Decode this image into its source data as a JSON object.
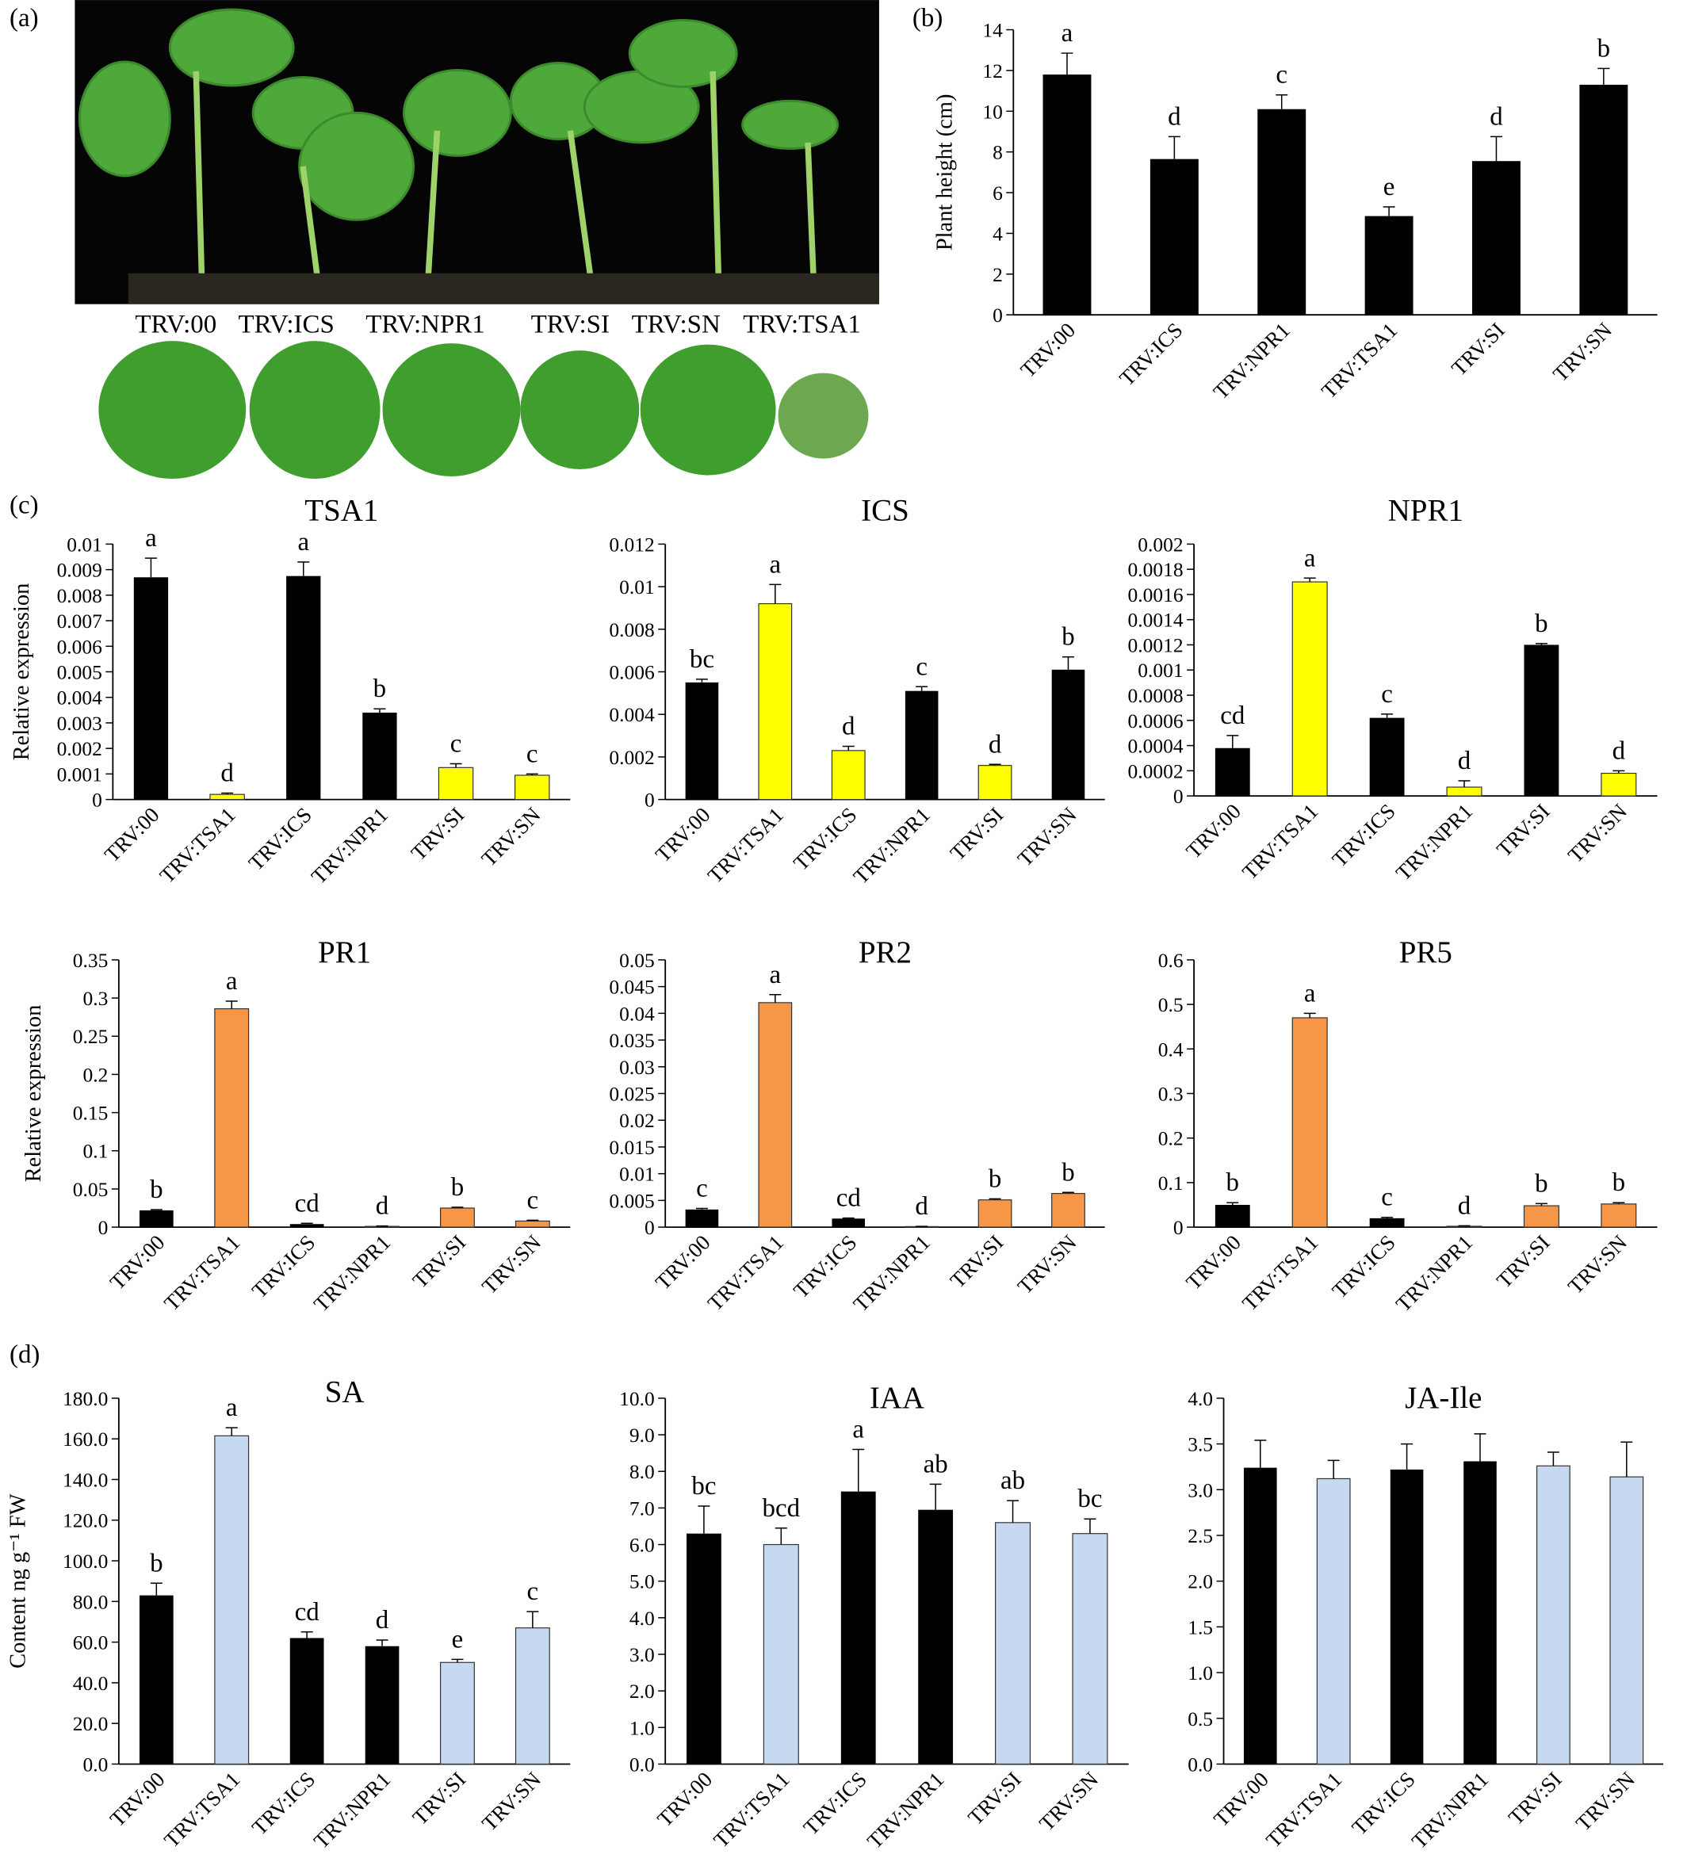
{
  "panel_labels": [
    "(a)",
    "(b)",
    "(c)",
    "(d)"
  ],
  "photo": {
    "labels": [
      "TRV:00",
      "TRV:ICS",
      "TRV:NPR1",
      "TRV:SI",
      "TRV:SN",
      "TRV:TSA1"
    ]
  },
  "chart_data": [
    {
      "type": "bar",
      "ylabel": "Plant height (cm)",
      "categories": [
        "TRV:00",
        "TRV:ICS",
        "TRV:NPR1",
        "TRV:TSA1",
        "TRV:SI",
        "TRV:SN"
      ],
      "values": [
        11.8,
        7.65,
        10.1,
        4.85,
        7.55,
        11.3
      ],
      "errors": [
        1.05,
        1.1,
        0.7,
        0.45,
        1.2,
        0.8
      ],
      "letters": [
        "a",
        "d",
        "c",
        "e",
        "d",
        "b"
      ],
      "colors": [
        "#000000",
        "#000000",
        "#000000",
        "#000000",
        "#000000",
        "#000000"
      ],
      "ylim": [
        0,
        14
      ],
      "yticks": [
        0,
        2,
        4,
        6,
        8,
        10,
        12,
        14
      ]
    },
    {
      "type": "bar",
      "title": "TSA1",
      "ylabel": "Relative expression",
      "categories": [
        "TRV:00",
        "TRV:TSA1",
        "TRV:ICS",
        "TRV:NPR1",
        "TRV:SI",
        "TRV:SN"
      ],
      "values": [
        0.0087,
        0.0002,
        0.00875,
        0.0034,
        0.00125,
        0.00095
      ],
      "errors": [
        0.00075,
        5e-05,
        0.00055,
        0.00015,
        0.00015,
        5e-05
      ],
      "letters": [
        "a",
        "d",
        "a",
        "b",
        "c",
        "c"
      ],
      "colors": [
        "#000000",
        "#ffff00",
        "#000000",
        "#000000",
        "#ffff00",
        "#ffff00"
      ],
      "ylim": [
        0,
        0.01
      ],
      "yticks": [
        0,
        0.001,
        0.002,
        0.003,
        0.004,
        0.005,
        0.006,
        0.007,
        0.008,
        0.009,
        0.01
      ]
    },
    {
      "type": "bar",
      "title": "ICS",
      "categories": [
        "TRV:00",
        "TRV:TSA1",
        "TRV:ICS",
        "TRV:NPR1",
        "TRV:SI",
        "TRV:SN"
      ],
      "values": [
        0.0055,
        0.0092,
        0.0023,
        0.0051,
        0.0016,
        0.0061
      ],
      "errors": [
        0.00015,
        0.0009,
        0.0002,
        0.0002,
        5e-05,
        0.0006
      ],
      "letters": [
        "bc",
        "a",
        "d",
        "c",
        "d",
        "b"
      ],
      "colors": [
        "#000000",
        "#ffff00",
        "#ffff00",
        "#000000",
        "#ffff00",
        "#000000"
      ],
      "ylim": [
        0,
        0.012
      ],
      "yticks": [
        0,
        0.002,
        0.004,
        0.006,
        0.008,
        0.01,
        0.012
      ]
    },
    {
      "type": "bar",
      "title": "NPR1",
      "categories": [
        "TRV:00",
        "TRV:TSA1",
        "TRV:ICS",
        "TRV:NPR1",
        "TRV:SI",
        "TRV:SN"
      ],
      "values": [
        0.00038,
        0.0017,
        0.00062,
        7e-05,
        0.0012,
        0.00018
      ],
      "errors": [
        0.0001,
        3e-05,
        3e-05,
        5e-05,
        1e-05,
        2e-05
      ],
      "letters": [
        "cd",
        "a",
        "c",
        "d",
        "b",
        "d"
      ],
      "colors": [
        "#000000",
        "#ffff00",
        "#000000",
        "#ffff00",
        "#000000",
        "#ffff00"
      ],
      "ylim": [
        0,
        0.002
      ],
      "yticks": [
        0,
        0.0002,
        0.0004,
        0.0006,
        0.0008,
        0.001,
        0.0012,
        0.0014,
        0.0016,
        0.0018,
        0.002
      ]
    },
    {
      "type": "bar",
      "title": "PR1",
      "ylabel": "Relative expression",
      "categories": [
        "TRV:00",
        "TRV:TSA1",
        "TRV:ICS",
        "TRV:NPR1",
        "TRV:SI",
        "TRV:SN"
      ],
      "values": [
        0.022,
        0.286,
        0.004,
        0.001,
        0.025,
        0.008
      ],
      "errors": [
        0.001,
        0.01,
        0.001,
        0.0005,
        0.001,
        0.001
      ],
      "letters": [
        "b",
        "a",
        "cd",
        "d",
        "b",
        "c"
      ],
      "colors": [
        "#000000",
        "#f79646",
        "#000000",
        "#f79646",
        "#f79646",
        "#f79646"
      ],
      "ylim": [
        0,
        0.35
      ],
      "yticks": [
        0,
        0.05,
        0.1,
        0.15,
        0.2,
        0.25,
        0.3,
        0.35
      ]
    },
    {
      "type": "bar",
      "title": "PR2",
      "categories": [
        "TRV:00",
        "TRV:TSA1",
        "TRV:ICS",
        "TRV:NPR1",
        "TRV:SI",
        "TRV:SN"
      ],
      "values": [
        0.0033,
        0.042,
        0.0016,
        0.0001,
        0.0051,
        0.0063
      ],
      "errors": [
        0.0002,
        0.0015,
        0.0001,
        5e-05,
        0.0002,
        0.0002
      ],
      "letters": [
        "c",
        "a",
        "cd",
        "d",
        "b",
        "b"
      ],
      "colors": [
        "#000000",
        "#f79646",
        "#000000",
        "#f79646",
        "#f79646",
        "#f79646"
      ],
      "ylim": [
        0,
        0.05
      ],
      "yticks": [
        0,
        0.005,
        0.01,
        0.015,
        0.02,
        0.025,
        0.03,
        0.035,
        0.04,
        0.045,
        0.05
      ]
    },
    {
      "type": "bar",
      "title": "PR5",
      "categories": [
        "TRV:00",
        "TRV:TSA1",
        "TRV:ICS",
        "TRV:NPR1",
        "TRV:SI",
        "TRV:SN"
      ],
      "values": [
        0.05,
        0.47,
        0.02,
        0.002,
        0.048,
        0.052
      ],
      "errors": [
        0.005,
        0.01,
        0.002,
        0.001,
        0.005,
        0.003
      ],
      "letters": [
        "b",
        "a",
        "c",
        "d",
        "b",
        "b"
      ],
      "colors": [
        "#000000",
        "#f79646",
        "#000000",
        "#f79646",
        "#f79646",
        "#f79646"
      ],
      "ylim": [
        0,
        0.6
      ],
      "yticks": [
        0,
        0.1,
        0.2,
        0.3,
        0.4,
        0.5,
        0.6
      ]
    },
    {
      "type": "bar",
      "title": "SA",
      "ylabel": "Content ng g⁻¹ FW",
      "categories": [
        "TRV:00",
        "TRV:TSA1",
        "TRV:ICS",
        "TRV:NPR1",
        "TRV:SI",
        "TRV:SN"
      ],
      "values": [
        83,
        161.5,
        62,
        58,
        50,
        67
      ],
      "errors": [
        6,
        4,
        3,
        3,
        1.5,
        8
      ],
      "letters": [
        "b",
        "a",
        "cd",
        "d",
        "e",
        "c"
      ],
      "colors": [
        "#000000",
        "#c6d9f1",
        "#000000",
        "#000000",
        "#c6d9f1",
        "#c6d9f1"
      ],
      "ylim": [
        0,
        180
      ],
      "yticks": [
        {
          "value": 0,
          "label": "0.0"
        },
        {
          "value": 20,
          "label": "20.0"
        },
        {
          "value": 40,
          "label": "40.0"
        },
        {
          "value": 60,
          "label": "60.0"
        },
        {
          "value": 80,
          "label": "80.0"
        },
        {
          "value": 100,
          "label": "100.0"
        },
        {
          "value": 120,
          "label": "120.0"
        },
        {
          "value": 140,
          "label": "140.0"
        },
        {
          "value": 160,
          "label": "160.0"
        },
        {
          "value": 180,
          "label": "180.0"
        }
      ]
    },
    {
      "type": "bar",
      "title": "IAA",
      "categories": [
        "TRV:00",
        "TRV:TSA1",
        "TRV:ICS",
        "TRV:NPR1",
        "TRV:SI",
        "TRV:SN"
      ],
      "values": [
        6.3,
        6.0,
        7.45,
        6.95,
        6.6,
        6.3
      ],
      "errors": [
        0.75,
        0.45,
        1.15,
        0.7,
        0.6,
        0.4
      ],
      "letters": [
        "bc",
        "bcd",
        "a",
        "ab",
        "ab",
        "bc"
      ],
      "colors": [
        "#000000",
        "#c6d9f1",
        "#000000",
        "#000000",
        "#c6d9f1",
        "#c6d9f1"
      ],
      "ylim": [
        0,
        10
      ],
      "yticks": [
        {
          "value": 0,
          "label": "0.0"
        },
        {
          "value": 1,
          "label": "1.0"
        },
        {
          "value": 2,
          "label": "2.0"
        },
        {
          "value": 3,
          "label": "3.0"
        },
        {
          "value": 4,
          "label": "4.0"
        },
        {
          "value": 5,
          "label": "5.0"
        },
        {
          "value": 6,
          "label": "6.0"
        },
        {
          "value": 7,
          "label": "7.0"
        },
        {
          "value": 8,
          "label": "8.0"
        },
        {
          "value": 9,
          "label": "9.0"
        },
        {
          "value": 10,
          "label": "10.0"
        }
      ]
    },
    {
      "type": "bar",
      "title": "JA-Ile",
      "categories": [
        "TRV:00",
        "TRV:TSA1",
        "TRV:ICS",
        "TRV:NPR1",
        "TRV:SI",
        "TRV:SN"
      ],
      "values": [
        3.24,
        3.12,
        3.22,
        3.31,
        3.26,
        3.14
      ],
      "errors": [
        0.3,
        0.2,
        0.28,
        0.3,
        0.15,
        0.38
      ],
      "colors": [
        "#000000",
        "#c6d9f1",
        "#000000",
        "#000000",
        "#c6d9f1",
        "#c6d9f1"
      ],
      "ylim": [
        0,
        4
      ],
      "yticks": [
        {
          "value": 0,
          "label": "0.0"
        },
        {
          "value": 0.5,
          "label": "0.5"
        },
        {
          "value": 1,
          "label": "1.0"
        },
        {
          "value": 1.5,
          "label": "1.5"
        },
        {
          "value": 2,
          "label": "2.0"
        },
        {
          "value": 2.5,
          "label": "2.5"
        },
        {
          "value": 3,
          "label": "3.0"
        },
        {
          "value": 3.5,
          "label": "3.5"
        },
        {
          "value": 4,
          "label": "4.0"
        }
      ]
    }
  ]
}
